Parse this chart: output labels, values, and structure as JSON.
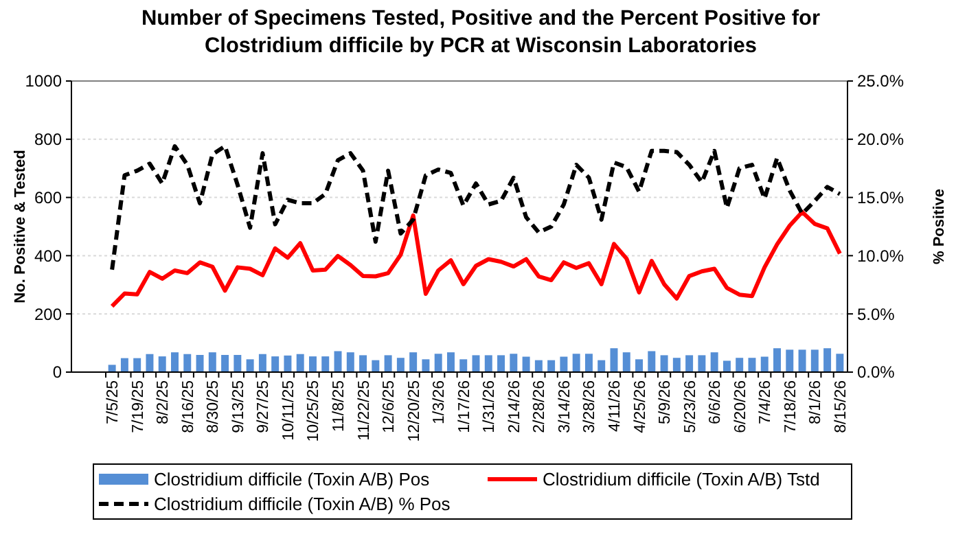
{
  "chart_data": {
    "type": "bar",
    "title": "Number of Specimens Tested, Positive and the Percent Positive for Clostridium difficile  by PCR at Wisconsin Laboratories",
    "ylabel": "No. Positive & Tested",
    "y2label": "% Positive",
    "categories": [
      "7/5/25",
      null,
      "7/19/25",
      null,
      "8/2/25",
      null,
      "8/16/25",
      null,
      "8/30/25",
      null,
      "9/13/25",
      null,
      "9/27/25",
      null,
      "10/11/25",
      null,
      "10/25/25",
      null,
      "11/8/25",
      null,
      "11/22/25",
      null,
      "12/6/25",
      null,
      "12/20/25",
      null,
      "1/3/26",
      null,
      "1/17/26",
      null,
      "1/31/26",
      null,
      "2/14/26",
      null,
      "2/28/26",
      null,
      "3/14/26",
      null,
      "3/28/26",
      null,
      "4/11/26",
      null,
      "4/25/26",
      null,
      "5/9/26",
      null,
      "5/23/26",
      null,
      "6/6/26",
      null,
      "6/20/26",
      null,
      "7/4/26",
      null,
      "7/18/26",
      null,
      "8/1/26",
      null,
      "8/15/26"
    ],
    "series": [
      {
        "name": "Clostridium difficile (Toxin A/B) Pos",
        "color": "#558ed5",
        "values": [
          25,
          48,
          48,
          62,
          54,
          68,
          62,
          59,
          68,
          59,
          59,
          44,
          62,
          54,
          57,
          62,
          54,
          54,
          72,
          68,
          58,
          41,
          58,
          49,
          68,
          44,
          63,
          68,
          44,
          58,
          58,
          58,
          63,
          53,
          41,
          41,
          53,
          63,
          63,
          41,
          82,
          68,
          44,
          72,
          58,
          49,
          58,
          58,
          68,
          39,
          49,
          49,
          53,
          82,
          77,
          77,
          77,
          82,
          63
        ]
      },
      {
        "name": "Clostridium difficile (Toxin A/B) Tstd",
        "type": "line",
        "color": "#ff0000",
        "values": [
          226,
          270,
          267,
          344,
          321,
          349,
          340,
          377,
          362,
          280,
          360,
          355,
          333,
          425,
          393,
          443,
          349,
          352,
          399,
          368,
          330,
          329,
          340,
          403,
          538,
          269,
          349,
          384,
          302,
          365,
          388,
          379,
          363,
          388,
          329,
          316,
          377,
          358,
          374,
          302,
          440,
          390,
          274,
          382,
          302,
          253,
          330,
          346,
          355,
          289,
          266,
          261,
          360,
          439,
          503,
          550,
          509,
          494,
          407
        ]
      },
      {
        "name": "Clostridium difficile (Toxin A/B) % Pos",
        "type": "line",
        "axis": "y2",
        "line_style": "dashed",
        "color": "#000000",
        "values": [
          8.8,
          16.9,
          17.3,
          17.9,
          16.2,
          19.4,
          17.8,
          14.5,
          18.7,
          19.4,
          16.1,
          12.4,
          18.8,
          12.7,
          14.8,
          14.5,
          14.5,
          15.3,
          18.2,
          18.8,
          17.3,
          11.2,
          17.3,
          11.9,
          13.1,
          16.9,
          17.4,
          17.1,
          14.3,
          16.2,
          14.4,
          14.7,
          16.7,
          13.3,
          12.0,
          12.5,
          14.4,
          17.8,
          16.7,
          13.1,
          18.0,
          17.6,
          15.5,
          19.0,
          19.0,
          18.9,
          17.8,
          16.3,
          19.0,
          14.1,
          17.5,
          17.8,
          14.9,
          18.4,
          15.6,
          13.6,
          14.7,
          15.9,
          15.3
        ]
      }
    ],
    "ylim": [
      0,
      1000
    ],
    "yticks": [
      0,
      200,
      400,
      600,
      800,
      1000
    ],
    "y2lim": [
      0,
      25
    ],
    "y2ticks": [
      {
        "value": 0,
        "label": "0.0%"
      },
      {
        "value": 5,
        "label": "5.0%"
      },
      {
        "value": 10,
        "label": "10.0%"
      },
      {
        "value": 15,
        "label": "15.0%"
      },
      {
        "value": 20,
        "label": "20.0%"
      },
      {
        "value": 25,
        "label": "25.0%"
      }
    ],
    "grid": "y",
    "legend": "bottom"
  }
}
